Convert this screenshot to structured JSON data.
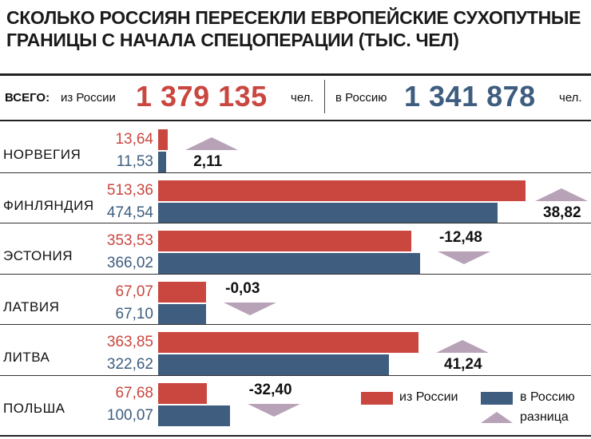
{
  "title": "СКОЛЬКО РОССИЯН ПЕРЕСЕКЛИ ЕВРОПЕЙСКИЕ СУХОПУТНЫЕ ГРАНИЦЫ С НАЧАЛА СПЕЦОПЕРАЦИИ (ТЫС. ЧЕЛ)",
  "totals": {
    "label": "ВСЕГО:",
    "from_label": "из России",
    "from_value": "1 379 135",
    "from_unit": "чел.",
    "to_label": "в Россию",
    "to_value": "1 341 878",
    "to_unit": "чел."
  },
  "colors": {
    "from": "#c9473f",
    "to": "#3e5d7f",
    "diff": "#b7a2b8"
  },
  "legend": {
    "from": "из России",
    "to": "в Россию",
    "diff": "разница"
  },
  "chart_data": {
    "type": "bar",
    "orientation": "horizontal",
    "title": "СКОЛЬКО РОССИЯН ПЕРЕСЕКЛИ ЕВРОПЕЙСКИЕ СУХОПУТНЫЕ ГРАНИЦЫ С НАЧАЛА СПЕЦОПЕРАЦИИ (ТЫС. ЧЕЛ)",
    "categories": [
      "НОРВЕГИЯ",
      "ФИНЛЯНДИЯ",
      "ЭСТОНИЯ",
      "ЛАТВИЯ",
      "ЛИТВА",
      "ПОЛЬША"
    ],
    "series": [
      {
        "name": "из России",
        "values": [
          13.64,
          513.36,
          353.53,
          67.07,
          363.85,
          67.68
        ],
        "labels": [
          "13,64",
          "513,36",
          "353,53",
          "67,07",
          "363,85",
          "67,68"
        ]
      },
      {
        "name": "в Россию",
        "values": [
          11.53,
          474.54,
          366.02,
          67.1,
          322.62,
          100.07
        ],
        "labels": [
          "11,53",
          "474,54",
          "366,02",
          "67,10",
          "322,62",
          "100,07"
        ]
      }
    ],
    "difference": {
      "name": "разница",
      "values": [
        2.11,
        38.82,
        -12.48,
        -0.03,
        41.24,
        -32.4
      ],
      "labels": [
        "2,11",
        "38,82",
        "-12,48",
        "-0,03",
        "41,24",
        "-32,40"
      ]
    },
    "legend_position": "bottom-right",
    "grid": false
  }
}
